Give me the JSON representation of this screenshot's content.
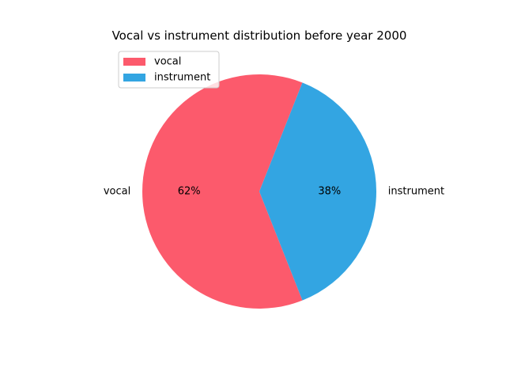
{
  "chart_data": {
    "type": "pie",
    "title": "Vocal vs instrument distribution before year 2000",
    "slices": [
      {
        "label": "vocal",
        "value": 62,
        "pct_label": "62%",
        "color": "#fc5a6c"
      },
      {
        "label": "instrument",
        "value": 38,
        "pct_label": "38%",
        "color": "#33a5e2"
      }
    ],
    "legend": {
      "placement": "upper-left",
      "items": [
        "vocal",
        "instrument"
      ]
    }
  }
}
